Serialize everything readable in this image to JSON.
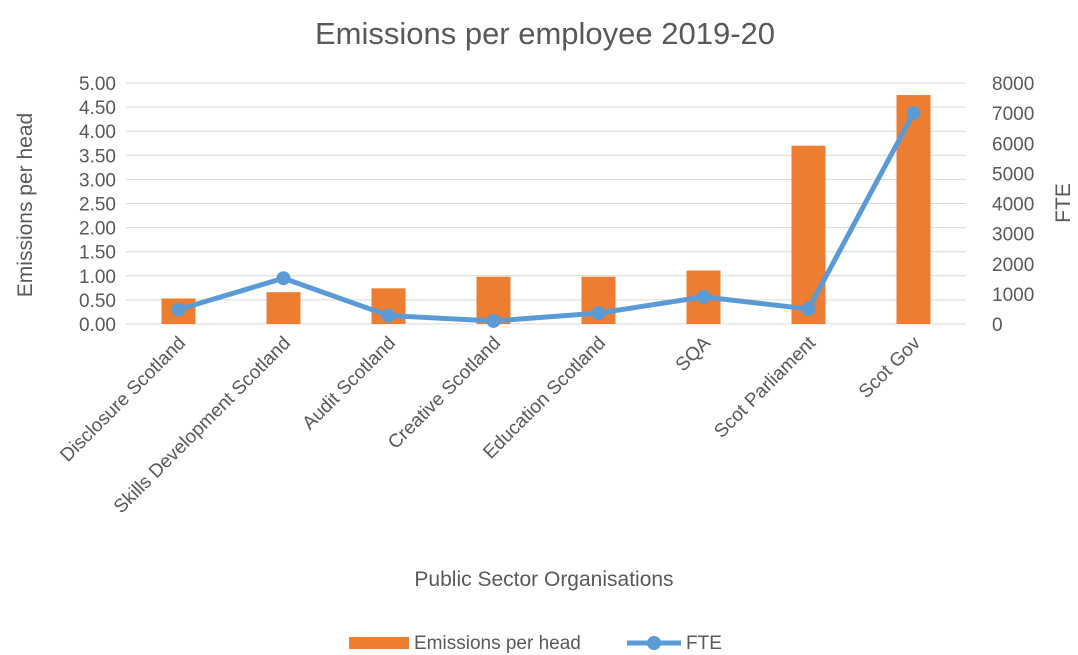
{
  "chart_data": {
    "type": "bar",
    "title": "Emissions per employee 2019-20",
    "xlabel": "Public Sector Organisations",
    "ylabel": "Emissions per head",
    "y2label": "FTE",
    "categories": [
      "Disclosure Scotland",
      "Skills Development Scotland",
      "Audit Scotland",
      "Creative Scotland",
      "Education Scotland",
      "SQA",
      "Scot Parliament",
      "Scot Gov"
    ],
    "ylim": [
      0,
      5
    ],
    "y2lim": [
      0,
      8000
    ],
    "yticks": [
      "0.00",
      "0.50",
      "1.00",
      "1.50",
      "2.00",
      "2.50",
      "3.00",
      "3.50",
      "4.00",
      "4.50",
      "5.00"
    ],
    "y2ticks": [
      "0",
      "1000",
      "2000",
      "3000",
      "4000",
      "5000",
      "6000",
      "7000",
      "8000"
    ],
    "grid": true,
    "legend_position": "bottom",
    "series": [
      {
        "name": "Emissions per head",
        "type": "bar",
        "axis": "left",
        "color": "#ed7d31",
        "values": [
          0.53,
          0.66,
          0.74,
          0.98,
          0.98,
          1.11,
          3.7,
          4.75
        ]
      },
      {
        "name": "FTE",
        "type": "line",
        "axis": "right",
        "color": "#5b9bd5",
        "values": [
          480,
          1520,
          280,
          100,
          360,
          900,
          500,
          7000
        ]
      }
    ]
  }
}
